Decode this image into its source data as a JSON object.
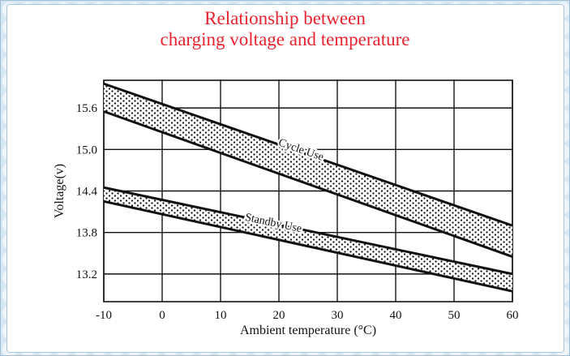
{
  "chart_data": {
    "type": "area",
    "title_lines": [
      "Relationship between",
      "charging voltage and temperature"
    ],
    "xlabel": "Ambient temperature (°C)",
    "ylabel": "Voltage(v)",
    "xlim": [
      -10,
      60
    ],
    "ylim": [
      12.8,
      16.0
    ],
    "xticks": [
      -10,
      0,
      10,
      20,
      30,
      40,
      50,
      60
    ],
    "yticks": [
      13.2,
      13.8,
      14.4,
      15.0,
      15.6
    ],
    "grid": true,
    "series": [
      {
        "name": "Cycle Use",
        "x": [
          -10,
          60
        ],
        "upper": [
          15.95,
          13.9
        ],
        "lower": [
          15.55,
          13.45
        ],
        "fill": "dotted"
      },
      {
        "name": "Standby Use",
        "x": [
          -10,
          60
        ],
        "upper": [
          14.45,
          13.2
        ],
        "lower": [
          14.25,
          12.95
        ],
        "fill": "dotted"
      }
    ]
  },
  "colors": {
    "title": "#e8242f",
    "line": "#111111",
    "grid": "#111111",
    "dots": "#111111"
  }
}
